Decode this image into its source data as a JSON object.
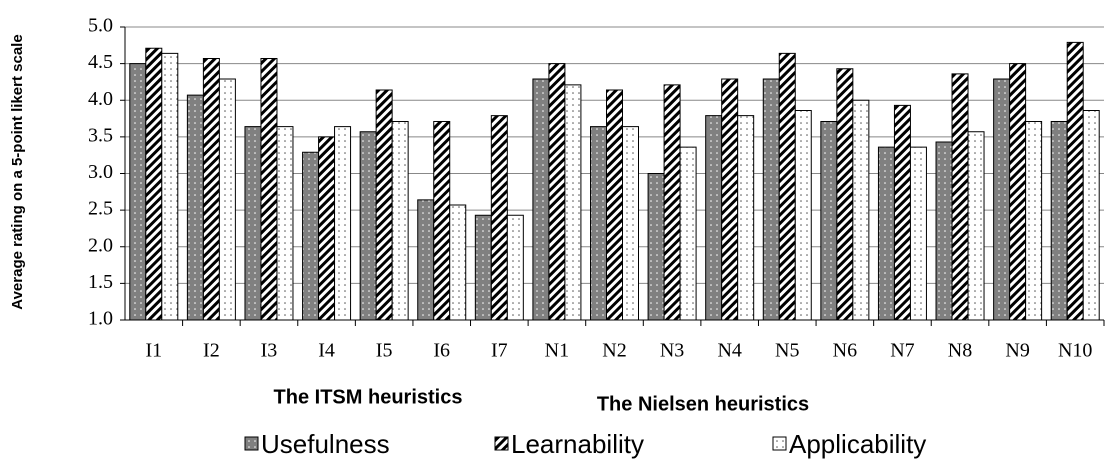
{
  "chart_data": {
    "type": "bar",
    "ylabel": "Average rating on a 5-point likert scale",
    "group_labels": [
      "The ITSM heuristics",
      "The Nielsen heuristics"
    ],
    "categories": [
      "I1",
      "I2",
      "I3",
      "I4",
      "I5",
      "I6",
      "I7",
      "N1",
      "N2",
      "N3",
      "N4",
      "N5",
      "N6",
      "N7",
      "N8",
      "N9",
      "N10"
    ],
    "series": [
      {
        "name": "Usefulness",
        "color": "#808080",
        "pattern": "dots",
        "values": [
          4.5,
          4.07,
          3.64,
          3.29,
          3.57,
          2.64,
          2.43,
          4.29,
          3.64,
          3.0,
          3.79,
          4.29,
          3.71,
          3.36,
          3.43,
          4.29,
          3.71
        ]
      },
      {
        "name": "Learnability",
        "color": "#000000",
        "pattern": "stripes",
        "values": [
          4.71,
          4.57,
          4.57,
          3.5,
          4.14,
          3.71,
          3.79,
          4.5,
          4.14,
          4.21,
          4.29,
          4.64,
          4.43,
          3.93,
          4.36,
          4.5,
          4.79
        ]
      },
      {
        "name": "Applicability",
        "color": "#ffffff",
        "pattern": "dots",
        "values": [
          4.64,
          4.29,
          3.64,
          3.64,
          3.71,
          2.57,
          2.43,
          4.21,
          3.64,
          3.36,
          3.79,
          3.86,
          4.0,
          3.36,
          3.57,
          3.71,
          3.86
        ]
      }
    ],
    "ylim": [
      1,
      5
    ],
    "yticks": [
      {
        "value": 1,
        "label": "1.0"
      },
      {
        "value": 1.5,
        "label": "1.5"
      },
      {
        "value": 2,
        "label": "2.0"
      },
      {
        "value": 2.5,
        "label": "2.5"
      },
      {
        "value": 3,
        "label": "3.0"
      },
      {
        "value": 3.5,
        "label": "3.5"
      },
      {
        "value": 4,
        "label": "4.0"
      },
      {
        "value": 4.5,
        "label": "4.5"
      },
      {
        "value": 5,
        "label": "5.0"
      }
    ],
    "grid": true,
    "legend": "bottom"
  }
}
